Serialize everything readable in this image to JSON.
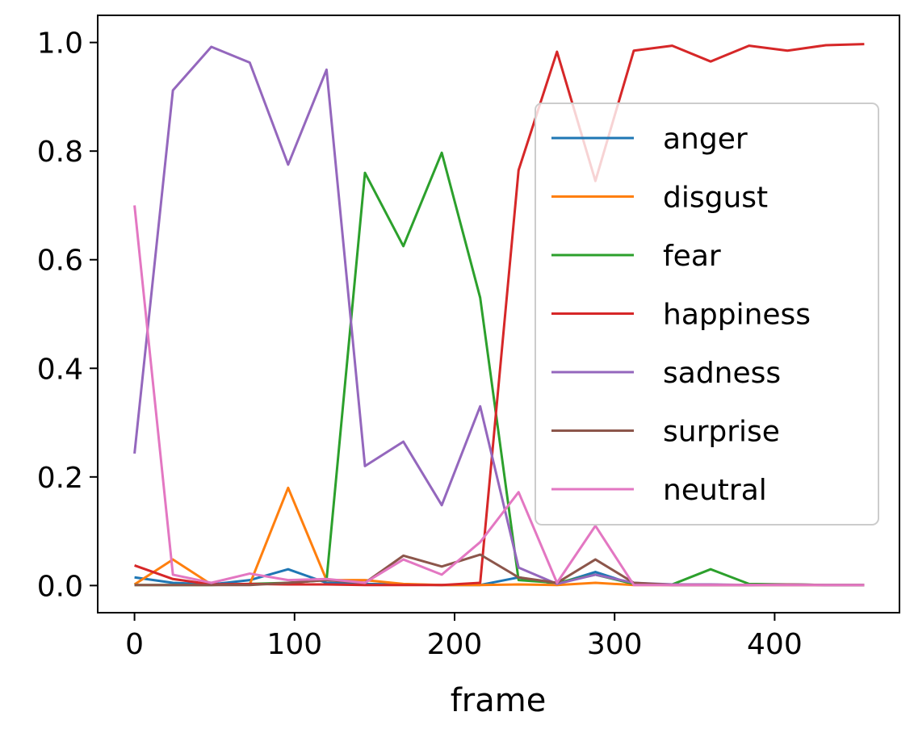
{
  "chart_data": {
    "type": "line",
    "xlabel": "frame",
    "ylabel": "",
    "xlim": [
      -23,
      478
    ],
    "ylim": [
      -0.05,
      1.05
    ],
    "xticks": [
      0,
      100,
      200,
      300,
      400
    ],
    "yticks": [
      0.0,
      0.2,
      0.4,
      0.6,
      0.8,
      1.0
    ],
    "xtick_labels": [
      "0",
      "100",
      "200",
      "300",
      "400"
    ],
    "ytick_labels": [
      "0.0",
      "0.2",
      "0.4",
      "0.6",
      "0.8",
      "1.0"
    ],
    "legend_position": "center-right",
    "grid": false,
    "x": [
      0,
      24,
      48,
      72,
      96,
      120,
      144,
      168,
      192,
      216,
      240,
      264,
      288,
      312,
      336,
      360,
      384,
      408,
      432,
      456
    ],
    "series": [
      {
        "name": "anger",
        "color": "#1f77b4",
        "values": [
          0.015,
          0.005,
          0.002,
          0.01,
          0.03,
          0.005,
          0.003,
          0.002,
          0.001,
          0.001,
          0.015,
          0.003,
          0.025,
          0.002,
          0.001,
          0.001,
          0.001,
          0.001,
          0.001,
          0.001
        ]
      },
      {
        "name": "disgust",
        "color": "#ff7f0e",
        "values": [
          0.002,
          0.048,
          0.002,
          0.002,
          0.18,
          0.01,
          0.01,
          0.003,
          0.001,
          0.001,
          0.002,
          0.001,
          0.005,
          0.001,
          0.001,
          0.001,
          0.001,
          0.001,
          0.001,
          0.001
        ]
      },
      {
        "name": "fear",
        "color": "#2ca02c",
        "values": [
          0.001,
          0.001,
          0.001,
          0.003,
          0.005,
          0.01,
          0.76,
          0.625,
          0.797,
          0.53,
          0.01,
          0.005,
          0.02,
          0.003,
          0.002,
          0.03,
          0.003,
          0.002,
          0.001,
          0.001
        ]
      },
      {
        "name": "happiness",
        "color": "#d62728",
        "values": [
          0.037,
          0.012,
          0.002,
          0.003,
          0.002,
          0.002,
          0.001,
          0.001,
          0.001,
          0.005,
          0.765,
          0.983,
          0.745,
          0.985,
          0.994,
          0.965,
          0.994,
          0.985,
          0.995,
          0.997
        ]
      },
      {
        "name": "sadness",
        "color": "#9467bd",
        "values": [
          0.243,
          0.912,
          0.992,
          0.963,
          0.775,
          0.95,
          0.22,
          0.265,
          0.148,
          0.33,
          0.033,
          0.003,
          0.02,
          0.005,
          0.002,
          0.002,
          0.001,
          0.002,
          0.001,
          0.001
        ]
      },
      {
        "name": "surprise",
        "color": "#8c564b",
        "values": [
          0.001,
          0.001,
          0.001,
          0.001,
          0.005,
          0.01,
          0.005,
          0.055,
          0.035,
          0.057,
          0.015,
          0.005,
          0.048,
          0.005,
          0.001,
          0.001,
          0.001,
          0.002,
          0.001,
          0.001
        ]
      },
      {
        "name": "neutral",
        "color": "#e377c2",
        "values": [
          0.7,
          0.02,
          0.005,
          0.022,
          0.01,
          0.012,
          0.005,
          0.048,
          0.02,
          0.08,
          0.172,
          0.005,
          0.11,
          0.001,
          0.001,
          0.001,
          0.001,
          0.001,
          0.001,
          0.001
        ]
      }
    ]
  }
}
